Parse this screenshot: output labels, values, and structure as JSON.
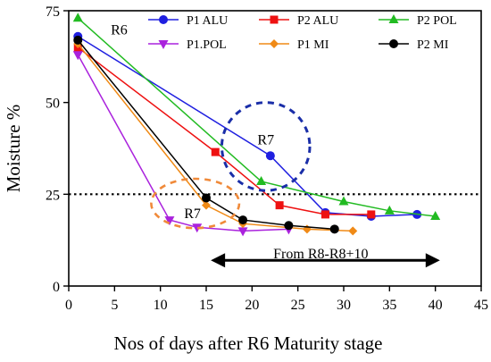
{
  "chart_data": {
    "type": "line",
    "title": "",
    "xlabel": "Nos of days after R6 Maturity stage",
    "ylabel": "Moisture %",
    "xlim": [
      0,
      45
    ],
    "ylim": [
      0,
      75
    ],
    "xticks": [
      0,
      5,
      10,
      15,
      20,
      25,
      30,
      35,
      40,
      45
    ],
    "yticks": [
      0,
      25,
      50,
      75
    ],
    "grid": false,
    "legend_position": "top-right",
    "series": [
      {
        "name": "P1 ALU",
        "color": "#1f1fe0",
        "marker": "circle",
        "x": [
          1,
          22,
          28,
          33,
          38
        ],
        "y": [
          68,
          35.5,
          20,
          19,
          19.5
        ]
      },
      {
        "name": "P2 ALU",
        "color": "#ee1111",
        "marker": "square",
        "x": [
          1,
          16,
          23,
          28,
          33
        ],
        "y": [
          65,
          36.5,
          22,
          19.5,
          19.5
        ]
      },
      {
        "name": "P2 POL",
        "color": "#22bb22",
        "marker": "triangle-up",
        "x": [
          1,
          21,
          30,
          35,
          40
        ],
        "y": [
          73,
          28.5,
          23,
          20.5,
          19
        ]
      },
      {
        "name": "P1.POL",
        "color": "#aa22dd",
        "marker": "triangle-down",
        "x": [
          1,
          11,
          14,
          19,
          24
        ],
        "y": [
          63,
          18,
          16,
          15,
          15.5
        ]
      },
      {
        "name": "P1 MI",
        "color": "#f08a16",
        "marker": "diamond",
        "x": [
          1,
          15,
          19,
          26,
          31
        ],
        "y": [
          66,
          22,
          17,
          15.5,
          15
        ]
      },
      {
        "name": "P2 MI",
        "color": "#000000",
        "marker": "circle",
        "x": [
          1,
          15,
          19,
          24,
          29
        ],
        "y": [
          67,
          24,
          18,
          16.5,
          15.5
        ]
      }
    ],
    "reference_line": {
      "y": 25,
      "style": "dotted"
    },
    "annotations": [
      {
        "text": "R6",
        "x": 5.5,
        "y": 70,
        "shape": "none"
      },
      {
        "text": "R7",
        "x": 21.5,
        "y": 40,
        "shape": "dashed-circle",
        "color": "#1a2ea8",
        "center": [
          21.5,
          38
        ],
        "radius_x": 4.8
      },
      {
        "text": "R7",
        "x": 13.5,
        "y": 20,
        "shape": "dashed-ellipse",
        "color": "#f08a3a",
        "center": [
          13.8,
          22.5
        ],
        "radius_x": 4.8
      },
      {
        "text": "From R8-R8+10",
        "x": 27.5,
        "y": 9,
        "shape": "double-arrow",
        "arrow_from": 15.5,
        "arrow_to": 40.5,
        "arrow_y": 7
      }
    ]
  }
}
